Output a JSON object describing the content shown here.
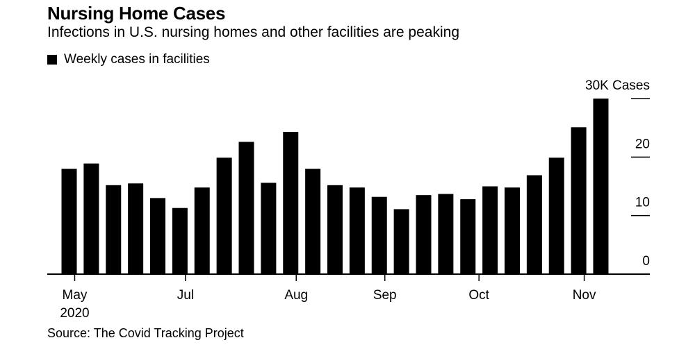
{
  "title": "Nursing Home Cases",
  "subtitle": "Infections in U.S. nursing homes and other facilities are peaking",
  "legend_label": "Weekly cases in facilities",
  "source": "Source: The Covid Tracking Project",
  "chart_data": {
    "type": "bar",
    "title": "Nursing Home Cases",
    "subtitle": "Infections in U.S. nursing homes and other facilities are peaking",
    "series": [
      {
        "name": "Weekly cases in facilities",
        "values": [
          18.0,
          18.9,
          15.2,
          15.5,
          13.0,
          11.3,
          14.8,
          19.9,
          22.6,
          15.6,
          24.3,
          18.0,
          15.2,
          14.8,
          13.2,
          11.1,
          13.5,
          13.7,
          12.8,
          15.0,
          14.8,
          16.9,
          19.9,
          25.1,
          30.0
        ],
        "color": "#000000"
      }
    ],
    "ylim": [
      0,
      30
    ],
    "y_ticks": [
      {
        "value": 0,
        "label": "0"
      },
      {
        "value": 10,
        "label": "10"
      },
      {
        "value": 20,
        "label": "20"
      },
      {
        "value": 30,
        "label": "30K Cases"
      }
    ],
    "x_ticks": [
      {
        "bar_index": 0.25,
        "label": "May",
        "sublabel": "2020"
      },
      {
        "bar_index": 5.25,
        "label": "Jul",
        "sublabel": ""
      },
      {
        "bar_index": 10.25,
        "label": "Aug",
        "sublabel": ""
      },
      {
        "bar_index": 14.25,
        "label": "Sep",
        "sublabel": ""
      },
      {
        "bar_index": 18.5,
        "label": "Oct",
        "sublabel": ""
      },
      {
        "bar_index": 23.25,
        "label": "Nov",
        "sublabel": ""
      }
    ],
    "y_axis_position": "right",
    "grid": false
  }
}
